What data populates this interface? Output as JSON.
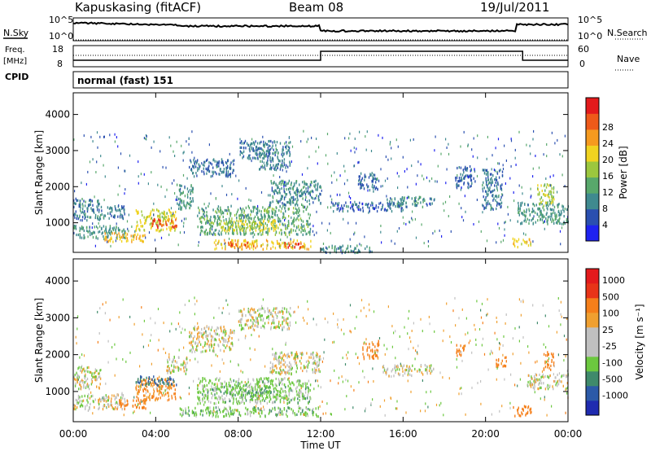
{
  "header": {
    "station": "Kapuskasing (fitACF)",
    "beam": "Beam 08",
    "date": "19/Jul/2011"
  },
  "status_strip": {
    "nsky_label": "N.Sky",
    "nsearch_label": "N.Search",
    "freq_label_1": "Freq.",
    "freq_label_2": "[MHz]",
    "nave_label": "Nave",
    "cpid_label": "CPID",
    "mode_text": "normal (fast) 151",
    "noise_ticks": [
      "10^5",
      "10^0"
    ],
    "freq_ticks": [
      "18",
      "8"
    ],
    "nave_ticks": [
      "60",
      "0"
    ]
  },
  "colorbars": {
    "power": {
      "label": "Power [dB]",
      "ticks": [
        "4",
        "8",
        "12",
        "16",
        "20",
        "24",
        "28"
      ],
      "colors": [
        "#1e22f0",
        "#2a4fb0",
        "#3f8a8f",
        "#58a86b",
        "#9cc73e",
        "#f0d320",
        "#f59a1f",
        "#ee5a1a",
        "#e31a1c"
      ]
    },
    "velocity": {
      "label": "Velocity [m s⁻¹]",
      "ticks": [
        "1000",
        "500",
        "100",
        "25",
        "-25",
        "-100",
        "-500",
        "-1000"
      ],
      "colors": [
        "#1f2bb0",
        "#2c5aa8",
        "#3f8a6b",
        "#6cc83f",
        "#c0c0c0",
        "#c0c0c0",
        "#f0a030",
        "#f57f1a",
        "#e83418",
        "#e31a1c"
      ]
    }
  },
  "chart_data": [
    {
      "type": "heatmap",
      "title": "Power",
      "ylabel": "Slant Range [km]",
      "ylim": [
        180,
        4600
      ],
      "yticks": [
        1000,
        2000,
        3000,
        4000
      ],
      "xlim": [
        0,
        24
      ],
      "blobs": [
        {
          "t0": 0.0,
          "t1": 1.3,
          "r0": 1100,
          "r1": 1700,
          "v": 8
        },
        {
          "t0": 1.2,
          "t1": 2.5,
          "r0": 1150,
          "r1": 1500,
          "v": 8
        },
        {
          "t0": 0.0,
          "t1": 2.5,
          "r0": 600,
          "r1": 950,
          "v": 10
        },
        {
          "t0": 1.5,
          "t1": 3.5,
          "r0": 500,
          "r1": 750,
          "v": 21
        },
        {
          "t0": 3.0,
          "t1": 5.0,
          "r0": 800,
          "r1": 1400,
          "v": 18
        },
        {
          "t0": 3.8,
          "t1": 5.0,
          "r0": 900,
          "r1": 1150,
          "v": 27
        },
        {
          "t0": 5.0,
          "t1": 5.8,
          "r0": 1400,
          "r1": 2100,
          "v": 10
        },
        {
          "t0": 5.6,
          "t1": 7.8,
          "r0": 2300,
          "r1": 2800,
          "v": 7
        },
        {
          "t0": 6.0,
          "t1": 11.5,
          "r0": 700,
          "r1": 1500,
          "v": 12
        },
        {
          "t0": 7.0,
          "t1": 10.0,
          "r0": 800,
          "r1": 1100,
          "v": 18
        },
        {
          "t0": 6.8,
          "t1": 11.5,
          "r0": 300,
          "r1": 550,
          "v": 20
        },
        {
          "t0": 7.5,
          "t1": 8.8,
          "r0": 350,
          "r1": 500,
          "v": 26
        },
        {
          "t0": 10.2,
          "t1": 11.2,
          "r0": 350,
          "r1": 480,
          "v": 27
        },
        {
          "t0": 8.0,
          "t1": 9.5,
          "r0": 2800,
          "r1": 3300,
          "v": 7
        },
        {
          "t0": 9.0,
          "t1": 10.5,
          "r0": 2500,
          "r1": 3300,
          "v": 8
        },
        {
          "t0": 9.5,
          "t1": 12.0,
          "r0": 1500,
          "r1": 2200,
          "v": 9
        },
        {
          "t0": 12.0,
          "t1": 14.5,
          "r0": 200,
          "r1": 400,
          "v": 9
        },
        {
          "t0": 13.8,
          "t1": 14.8,
          "r0": 1900,
          "r1": 2400,
          "v": 7
        },
        {
          "t0": 15.2,
          "t1": 17.5,
          "r0": 1450,
          "r1": 1750,
          "v": 9
        },
        {
          "t0": 12.5,
          "t1": 16.0,
          "r0": 1350,
          "r1": 1600,
          "v": 6
        },
        {
          "t0": 18.5,
          "t1": 19.5,
          "r0": 2000,
          "r1": 2600,
          "v": 6
        },
        {
          "t0": 19.8,
          "t1": 20.8,
          "r0": 1400,
          "r1": 2500,
          "v": 8
        },
        {
          "t0": 21.3,
          "t1": 22.2,
          "r0": 350,
          "r1": 600,
          "v": 20
        },
        {
          "t0": 21.5,
          "t1": 24.0,
          "r0": 1000,
          "r1": 1600,
          "v": 10
        },
        {
          "t0": 22.5,
          "t1": 23.3,
          "r0": 1500,
          "r1": 2100,
          "v": 16
        }
      ]
    },
    {
      "type": "heatmap",
      "title": "Velocity",
      "ylabel": "Slant Range [km]",
      "xlabel": "Time UT",
      "ylim": [
        180,
        4600
      ],
      "yticks": [
        1000,
        2000,
        3000,
        4000
      ],
      "xlim": [
        0,
        24
      ],
      "xticks": [
        "00:00",
        "04:00",
        "08:00",
        "12:00",
        "16:00",
        "20:00",
        "00:00"
      ],
      "blobs": [
        {
          "t0": 0.0,
          "t1": 1.3,
          "r0": 1100,
          "r1": 1700,
          "v": 0
        },
        {
          "t0": 0.0,
          "t1": 2.5,
          "r0": 550,
          "r1": 950,
          "v": 0
        },
        {
          "t0": 2.0,
          "t1": 3.5,
          "r0": 550,
          "r1": 800,
          "v": -300
        },
        {
          "t0": 3.0,
          "t1": 5.0,
          "r0": 800,
          "r1": 1400,
          "v": -120
        },
        {
          "t0": 3.0,
          "t1": 5.0,
          "r0": 1200,
          "r1": 1450,
          "v": 300
        },
        {
          "t0": 4.5,
          "t1": 5.5,
          "r0": 1500,
          "r1": 2000,
          "v": 0
        },
        {
          "t0": 5.6,
          "t1": 7.8,
          "r0": 2100,
          "r1": 2800,
          "v": 0
        },
        {
          "t0": 6.0,
          "t1": 11.5,
          "r0": 700,
          "r1": 1400,
          "v": 50
        },
        {
          "t0": 7.0,
          "t1": 10.0,
          "r0": 900,
          "r1": 1200,
          "v": 80
        },
        {
          "t0": 5.0,
          "t1": 12.0,
          "r0": 350,
          "r1": 600,
          "v": 60
        },
        {
          "t0": 9.5,
          "t1": 12.0,
          "r0": 1500,
          "r1": 2100,
          "v": 0
        },
        {
          "t0": 8.0,
          "t1": 10.5,
          "r0": 2700,
          "r1": 3300,
          "v": 0
        },
        {
          "t0": 15.0,
          "t1": 17.5,
          "r0": 1450,
          "r1": 1750,
          "v": 0
        },
        {
          "t0": 14.0,
          "t1": 14.8,
          "r0": 1900,
          "r1": 2400,
          "v": -300
        },
        {
          "t0": 18.5,
          "t1": 19.0,
          "r0": 2000,
          "r1": 2300,
          "v": -300
        },
        {
          "t0": 20.5,
          "t1": 21.0,
          "r0": 1700,
          "r1": 2000,
          "v": -300
        },
        {
          "t0": 21.3,
          "t1": 22.2,
          "r0": 350,
          "r1": 650,
          "v": -300
        },
        {
          "t0": 22.0,
          "t1": 24.0,
          "r0": 1100,
          "r1": 1500,
          "v": 0
        },
        {
          "t0": 22.8,
          "t1": 23.3,
          "r0": 1600,
          "r1": 2100,
          "v": -200
        }
      ]
    }
  ]
}
